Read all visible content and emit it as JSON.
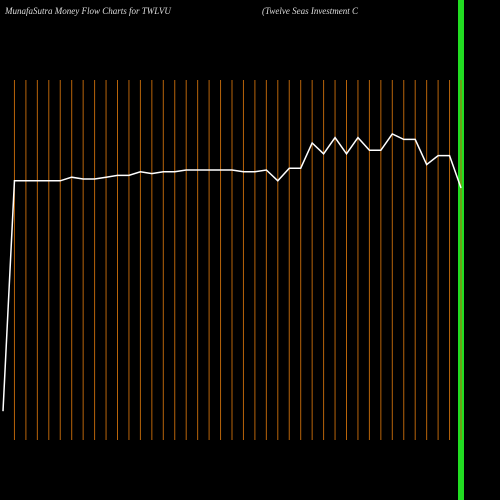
{
  "chart_data": {
    "type": "line",
    "title": "MunafaSutra  Money Flow  Charts for TWLVU",
    "subtitle": "(Twelve  Seas Investment C",
    "categories": [
      null,
      null,
      null,
      null,
      null,
      null,
      null,
      null,
      null,
      null,
      null,
      null,
      null,
      null,
      null,
      null,
      null,
      null,
      null,
      null,
      null,
      null,
      null,
      null,
      null,
      null,
      null,
      null,
      null,
      null,
      null,
      null,
      null,
      null,
      null,
      null,
      null,
      null,
      null,
      null,
      null
    ],
    "values": [
      8,
      72,
      72,
      72,
      72,
      72,
      73,
      72.5,
      72.5,
      73,
      73.5,
      73.5,
      74.5,
      74,
      74.5,
      74.5,
      75,
      75,
      75,
      75,
      75,
      74.5,
      74.5,
      75,
      72,
      75.5,
      75.5,
      82.5,
      79.5,
      84,
      79.5,
      84,
      80.5,
      80.5,
      85,
      83.5,
      83.5,
      76.5,
      79,
      79,
      70
    ],
    "color": "#ffffff",
    "grid_color": "#b8640a",
    "ylim": [
      0,
      100
    ]
  }
}
